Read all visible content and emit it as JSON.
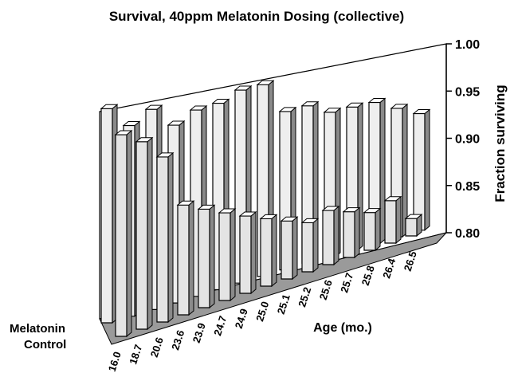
{
  "chart_data": {
    "type": "bar3d",
    "title": "Survival, 40ppm Melatonin Dosing (collective)",
    "x_label": "Age (mo.)",
    "y_label": "Fraction surviving",
    "categories": [
      "16.0",
      "18.7",
      "20.6",
      "23.6",
      "23.9",
      "24.7",
      "24.9",
      "25.0",
      "25.1",
      "25.2",
      "25.6",
      "25.7",
      "25.8",
      "26.4",
      "26.5"
    ],
    "series": [
      {
        "name": "Melatonin",
        "color": "#eeeeee",
        "values": [
          0.925,
          0.915,
          0.925,
          0.915,
          0.925,
          0.93,
          0.94,
          0.945,
          0.925,
          0.93,
          0.925,
          0.93,
          0.935,
          0.93,
          0.925
        ]
      },
      {
        "name": "Control",
        "color": "#e4e4e4",
        "values": [
          0.91,
          0.905,
          0.895,
          0.865,
          0.86,
          0.855,
          0.85,
          0.845,
          0.84,
          0.835,
          0.84,
          0.835,
          0.83,
          0.835,
          0.815
        ]
      }
    ],
    "ylim": [
      0.8,
      1.0
    ],
    "yticks": [
      {
        "value": 0.8,
        "label": "0.80"
      },
      0.85,
      {
        "value": 0.9,
        "label": "0.90"
      },
      0.95,
      {
        "value": 1.0,
        "label": "1.00"
      }
    ]
  }
}
